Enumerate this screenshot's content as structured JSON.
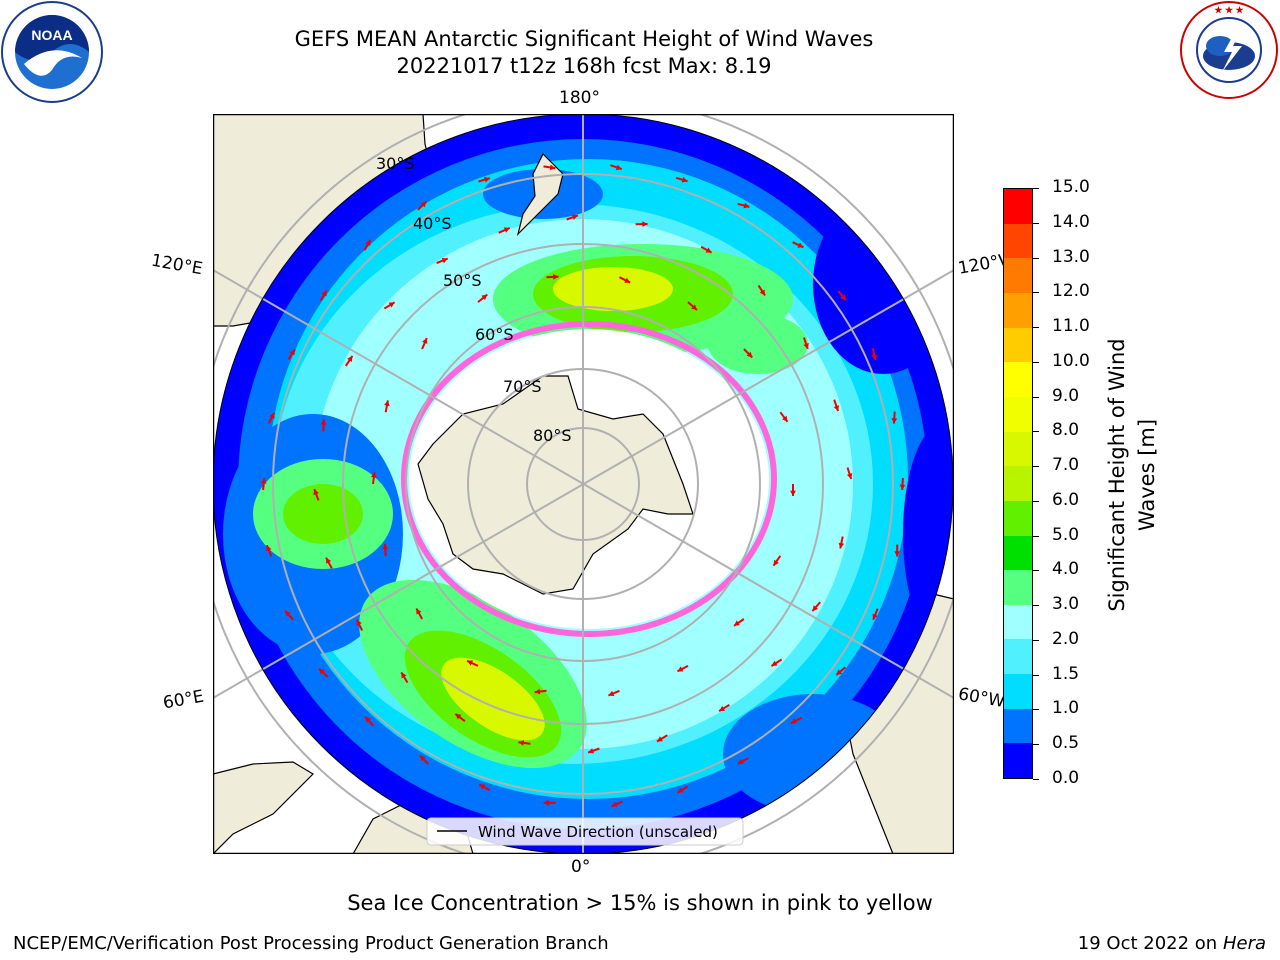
{
  "header": {
    "title_line1": "GEFS MEAN Antarctic Significant Height of Wind Waves",
    "title_line2": "20221017 t12z 168h fcst   Max: 8.19"
  },
  "logos": {
    "left": {
      "icon": "noaa-logo-icon",
      "text": "NOAA",
      "ring_text": "NATIONAL OCEANIC AND ATMOSPHERIC ADMINISTRATION · U.S. DEPARTMENT OF COMMERCE"
    },
    "right": {
      "icon": "nws-logo-icon",
      "ring_text": "NATIONAL WEATHER SERVICE"
    }
  },
  "map": {
    "projection": "south polar stereographic",
    "longitude_labels": {
      "top": "180°",
      "bottom": "0°",
      "upper_left": "120°E",
      "upper_right": "120°W",
      "lower_left": "60°E",
      "lower_right": "60°W"
    },
    "latitude_labels": [
      "30°S",
      "40°S",
      "50°S",
      "60°S",
      "70°S",
      "80°S"
    ],
    "legend_label": "Wind Wave Direction (unscaled)",
    "colors": {
      "land": "#efedda",
      "grid": "#b0b0b0",
      "arrow": "#ee0000",
      "sea_ice": "#ff66dd"
    }
  },
  "colorbar": {
    "label": "Significant Height of Wind Waves [m]",
    "ticks": [
      "0.0",
      "0.5",
      "1.0",
      "1.5",
      "2.0",
      "3.0",
      "4.0",
      "5.0",
      "6.0",
      "7.0",
      "8.0",
      "9.0",
      "10.0",
      "11.0",
      "12.0",
      "13.0",
      "14.0",
      "15.0"
    ],
    "colors": [
      "#0000ff",
      "#0073ff",
      "#00ddff",
      "#50f0ff",
      "#a0ffff",
      "#55ff80",
      "#00e000",
      "#60f000",
      "#b8f400",
      "#d8f800",
      "#f0ff00",
      "#ffff00",
      "#ffcc00",
      "#ffa000",
      "#ff7a00",
      "#ff4500",
      "#ff0000"
    ]
  },
  "bottom_note": "Sea Ice Concentration > 15% is shown in pink to yellow",
  "footer": {
    "left": "NCEP/EMC/Verification Post Processing Product Generation Branch",
    "right_prefix": "19 Oct 2022 on",
    "right_host": "Hera"
  }
}
